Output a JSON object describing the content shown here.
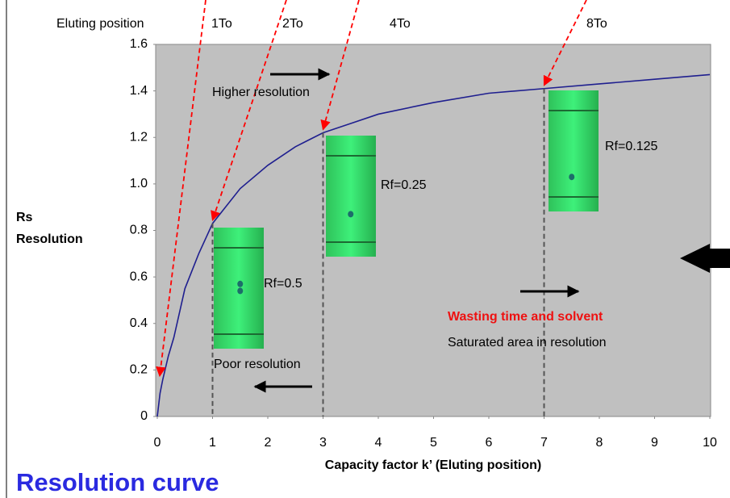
{
  "chart_data": {
    "type": "line",
    "title": "Resolution curve",
    "x_label": "Capacity factor k’ (Eluting position)",
    "y_label": [
      "Rs",
      "Resolution"
    ],
    "x": [
      0,
      0.05,
      0.1,
      0.2,
      0.3,
      0.5,
      0.75,
      1,
      1.5,
      2,
      2.5,
      3,
      3.5,
      4,
      5,
      6,
      7,
      8,
      9,
      10
    ],
    "series": [
      {
        "name": "Resolution",
        "color": "#1f1f8f",
        "values": [
          0,
          0.1,
          0.16,
          0.26,
          0.34,
          0.55,
          0.7,
          0.83,
          0.98,
          1.08,
          1.16,
          1.22,
          1.26,
          1.3,
          1.35,
          1.39,
          1.41,
          1.43,
          1.45,
          1.47
        ]
      }
    ],
    "xlim": [
      0,
      10
    ],
    "xticks": [
      0,
      1,
      2,
      3,
      4,
      5,
      6,
      7,
      8,
      9,
      10
    ],
    "ylim": [
      0,
      1.6
    ],
    "yticks": [
      0,
      0.2,
      0.4,
      0.6,
      0.8,
      {
        "value": 1,
        "label": "1.0"
      },
      1.2,
      1.4,
      1.6
    ],
    "eluting_label": "Eluting position",
    "eluting_positions": [
      {
        "label": "1To",
        "k": 0
      },
      {
        "label": "2To",
        "k": 1
      },
      {
        "label": "4To",
        "k": 3
      },
      {
        "label": "8To",
        "k": 7
      }
    ],
    "plates": [
      "Rf=0.5",
      "Rf=0.25",
      "Rf=0.125"
    ],
    "annotations": [
      "Higher resolution",
      "Poor resolution",
      "Wasting time and solvent",
      "Saturated area in resolution"
    ]
  }
}
